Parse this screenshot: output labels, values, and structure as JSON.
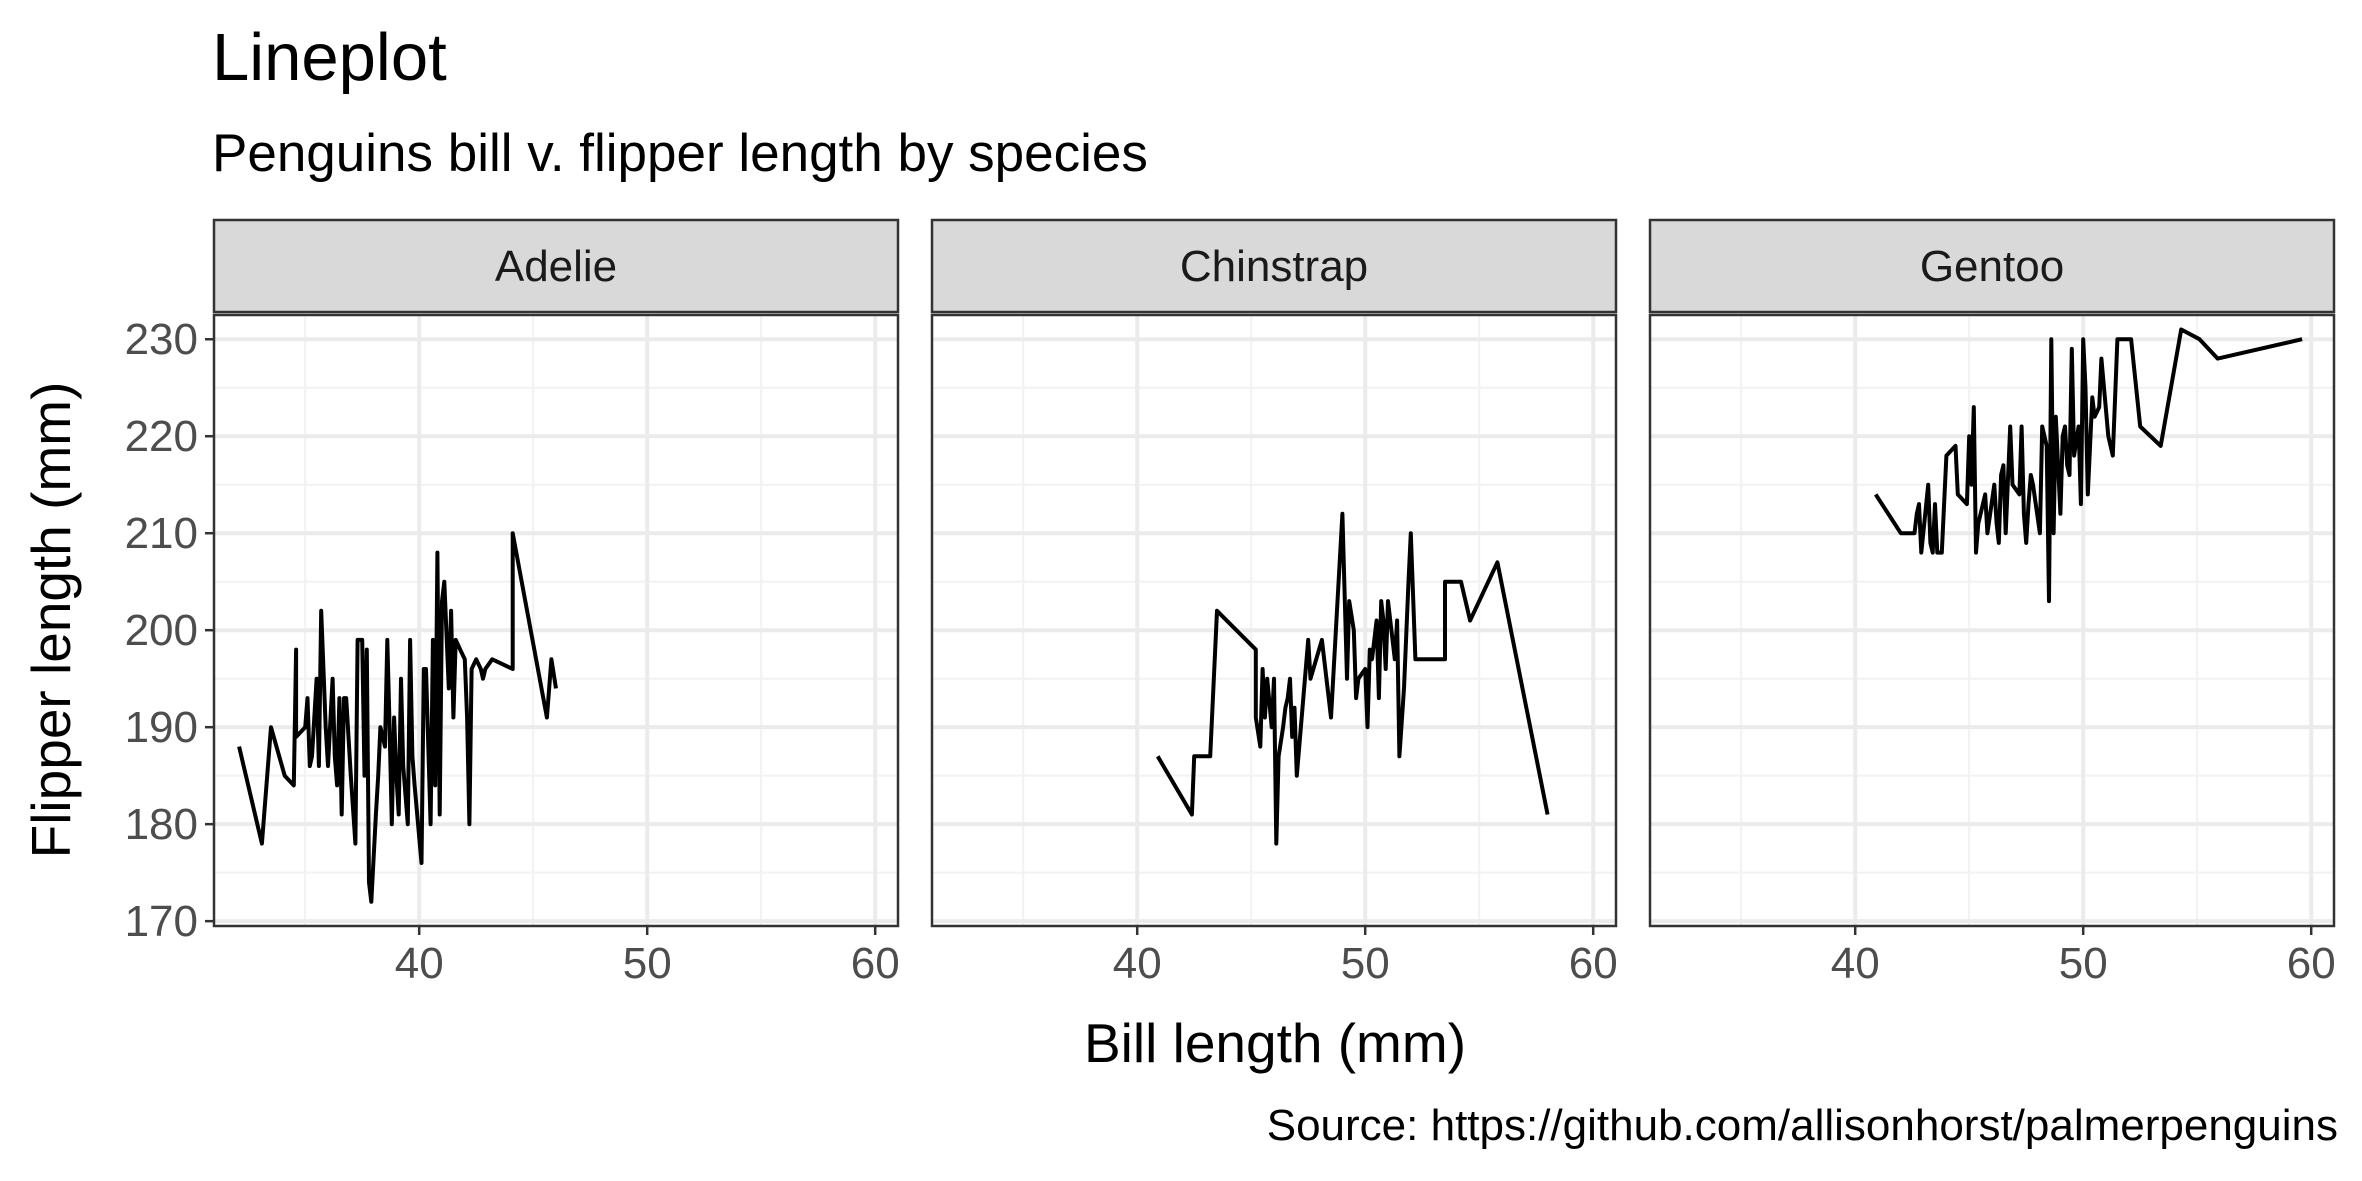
{
  "chart_data": {
    "type": "line",
    "title": "Lineplot",
    "subtitle": "Penguins bill v. flipper length by species",
    "xlabel": "Bill length (mm)",
    "ylabel": "Flipper length (mm)",
    "caption": "Source: https://github.com/allisonhorst/palmerpenguins",
    "xlim": [
      31,
      61
    ],
    "ylim": [
      169.5,
      232.5
    ],
    "x_ticks": [
      40,
      50,
      60
    ],
    "y_ticks": [
      170,
      180,
      190,
      200,
      210,
      220,
      230
    ],
    "grid": true,
    "line_color": "#000000",
    "panels": [
      {
        "name": "Adelie",
        "points": [
          [
            32.1,
            188
          ],
          [
            33.1,
            178
          ],
          [
            33.5,
            190
          ],
          [
            34.1,
            185
          ],
          [
            34.5,
            184
          ],
          [
            34.6,
            198
          ],
          [
            34.6,
            189
          ],
          [
            35,
            190
          ],
          [
            35.1,
            193
          ],
          [
            35.2,
            186
          ],
          [
            35.3,
            187
          ],
          [
            35.5,
            195
          ],
          [
            35.6,
            186
          ],
          [
            35.7,
            202
          ],
          [
            35.9,
            190
          ],
          [
            36,
            186
          ],
          [
            36.2,
            195
          ],
          [
            36.3,
            187
          ],
          [
            36.4,
            184
          ],
          [
            36.5,
            193
          ],
          [
            36.6,
            181
          ],
          [
            36.7,
            193
          ],
          [
            36.8,
            193
          ],
          [
            36.9,
            189
          ],
          [
            37,
            185
          ],
          [
            37.2,
            178
          ],
          [
            37.3,
            199
          ],
          [
            37.5,
            199
          ],
          [
            37.6,
            185
          ],
          [
            37.7,
            198
          ],
          [
            37.8,
            174
          ],
          [
            37.9,
            172
          ],
          [
            38.1,
            181
          ],
          [
            38.2,
            185
          ],
          [
            38.3,
            190
          ],
          [
            38.5,
            188
          ],
          [
            38.6,
            199
          ],
          [
            38.7,
            190
          ],
          [
            38.8,
            180
          ],
          [
            38.9,
            191
          ],
          [
            39,
            185
          ],
          [
            39.1,
            181
          ],
          [
            39.2,
            195
          ],
          [
            39.3,
            186
          ],
          [
            39.5,
            180
          ],
          [
            39.6,
            199
          ],
          [
            39.7,
            187
          ],
          [
            39.8,
            184
          ],
          [
            40.1,
            176
          ],
          [
            40.2,
            196
          ],
          [
            40.3,
            196
          ],
          [
            40.5,
            180
          ],
          [
            40.6,
            199
          ],
          [
            40.7,
            184
          ],
          [
            40.8,
            208
          ],
          [
            40.9,
            181
          ],
          [
            41,
            203
          ],
          [
            41.1,
            205
          ],
          [
            41.3,
            194
          ],
          [
            41.4,
            202
          ],
          [
            41.5,
            191
          ],
          [
            41.6,
            199
          ],
          [
            41.8,
            198
          ],
          [
            42,
            197
          ],
          [
            42.1,
            191
          ],
          [
            42.2,
            180
          ],
          [
            42.3,
            196
          ],
          [
            42.5,
            197
          ],
          [
            42.7,
            196
          ],
          [
            42.8,
            195
          ],
          [
            42.9,
            196
          ],
          [
            43.2,
            197
          ],
          [
            44.1,
            196
          ],
          [
            44.1,
            210
          ],
          [
            45.6,
            191
          ],
          [
            45.8,
            197
          ],
          [
            46,
            194
          ]
        ]
      },
      {
        "name": "Chinstrap",
        "points": [
          [
            40.9,
            187
          ],
          [
            42.4,
            181
          ],
          [
            42.5,
            187
          ],
          [
            43.2,
            187
          ],
          [
            43.5,
            202
          ],
          [
            45.2,
            198
          ],
          [
            45.2,
            191
          ],
          [
            45.4,
            188
          ],
          [
            45.5,
            196
          ],
          [
            45.6,
            191
          ],
          [
            45.7,
            195
          ],
          [
            45.9,
            190
          ],
          [
            46,
            195
          ],
          [
            46.1,
            178
          ],
          [
            46.2,
            187
          ],
          [
            46.4,
            190
          ],
          [
            46.5,
            192
          ],
          [
            46.6,
            193
          ],
          [
            46.7,
            195
          ],
          [
            46.8,
            189
          ],
          [
            46.9,
            192
          ],
          [
            47,
            185
          ],
          [
            47.5,
            199
          ],
          [
            47.6,
            195
          ],
          [
            48.1,
            199
          ],
          [
            48.5,
            191
          ],
          [
            49,
            212
          ],
          [
            49.2,
            195
          ],
          [
            49.3,
            203
          ],
          [
            49.5,
            200
          ],
          [
            49.6,
            193
          ],
          [
            49.7,
            195
          ],
          [
            50,
            196
          ],
          [
            50.1,
            190
          ],
          [
            50.2,
            198
          ],
          [
            50.3,
            197
          ],
          [
            50.5,
            201
          ],
          [
            50.6,
            193
          ],
          [
            50.7,
            203
          ],
          [
            50.8,
            201
          ],
          [
            50.9,
            196
          ],
          [
            51,
            203
          ],
          [
            51.3,
            197
          ],
          [
            51.4,
            201
          ],
          [
            51.5,
            187
          ],
          [
            51.7,
            194
          ],
          [
            51.9,
            205
          ],
          [
            52,
            210
          ],
          [
            52.2,
            197
          ],
          [
            53.5,
            197
          ],
          [
            53.5,
            205
          ],
          [
            54.2,
            205
          ],
          [
            55.8,
            207
          ],
          [
            54.6,
            201
          ],
          [
            58,
            181
          ]
        ]
      },
      {
        "name": "Gentoo",
        "points": [
          [
            40.9,
            214
          ],
          [
            42,
            210
          ],
          [
            42.6,
            210
          ],
          [
            42.7,
            212
          ],
          [
            42.8,
            213
          ],
          [
            42.9,
            208
          ],
          [
            43.2,
            215
          ],
          [
            43.3,
            209
          ],
          [
            43.4,
            208
          ],
          [
            43.5,
            213
          ],
          [
            43.6,
            208
          ],
          [
            43.8,
            208
          ],
          [
            44,
            218
          ],
          [
            44.4,
            219
          ],
          [
            44.5,
            214
          ],
          [
            44.9,
            213
          ],
          [
            45,
            220
          ],
          [
            45.1,
            215
          ],
          [
            45.2,
            223
          ],
          [
            45.3,
            208
          ],
          [
            45.4,
            211
          ],
          [
            45.5,
            212
          ],
          [
            45.7,
            214
          ],
          [
            45.8,
            210
          ],
          [
            46.1,
            215
          ],
          [
            46.2,
            211
          ],
          [
            46.3,
            209
          ],
          [
            46.4,
            216
          ],
          [
            46.5,
            217
          ],
          [
            46.6,
            210
          ],
          [
            46.8,
            221
          ],
          [
            46.9,
            215
          ],
          [
            47.2,
            214
          ],
          [
            47.3,
            221
          ],
          [
            47.4,
            212
          ],
          [
            47.5,
            209
          ],
          [
            47.6,
            213
          ],
          [
            47.7,
            216
          ],
          [
            47.8,
            215
          ],
          [
            48.1,
            210
          ],
          [
            48.2,
            221
          ],
          [
            48.4,
            219
          ],
          [
            48.5,
            203
          ],
          [
            48.6,
            230
          ],
          [
            48.7,
            210
          ],
          [
            48.8,
            222
          ],
          [
            49,
            212
          ],
          [
            49.1,
            220
          ],
          [
            49.2,
            221
          ],
          [
            49.3,
            217
          ],
          [
            49.4,
            216
          ],
          [
            49.5,
            229
          ],
          [
            49.6,
            218
          ],
          [
            49.8,
            221
          ],
          [
            49.9,
            213
          ],
          [
            50,
            230
          ],
          [
            50.1,
            225
          ],
          [
            50.2,
            214
          ],
          [
            50.4,
            224
          ],
          [
            50.5,
            222
          ],
          [
            50.7,
            223
          ],
          [
            50.8,
            228
          ],
          [
            51.1,
            220
          ],
          [
            51.3,
            218
          ],
          [
            51.5,
            230
          ],
          [
            52.1,
            230
          ],
          [
            52.5,
            221
          ],
          [
            53.4,
            219
          ],
          [
            54.3,
            231
          ],
          [
            55.1,
            230
          ],
          [
            55.9,
            228
          ],
          [
            59.6,
            230
          ]
        ]
      }
    ]
  }
}
